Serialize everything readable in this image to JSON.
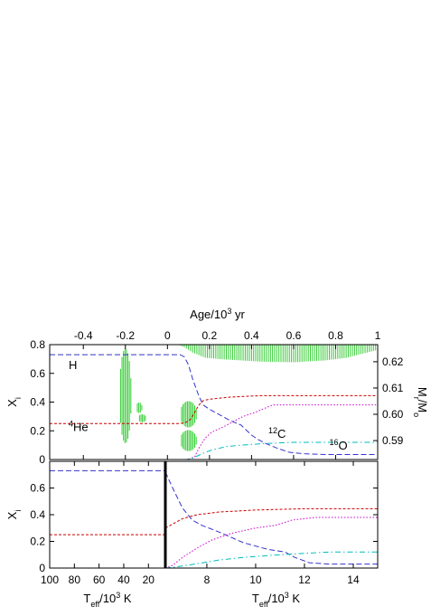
{
  "chart_data": [
    {
      "panel": "top",
      "type": "line",
      "x_top_axis": {
        "label": "Age/10",
        "label_sup": "3",
        "label_tail": " yr",
        "lim": [
          -0.56,
          1.0
        ],
        "ticks": [
          "-0.4",
          "-0.2",
          "0",
          "0.2",
          "0.4",
          "0.6",
          "0.8",
          "1"
        ],
        "tick_values": [
          -0.4,
          -0.2,
          0,
          0.2,
          0.4,
          0.6,
          0.8,
          1.0
        ]
      },
      "y_left_axis": {
        "label": "X",
        "label_sub": "i",
        "lim": [
          0,
          0.8
        ],
        "ticks": [
          "0",
          "0.2",
          "0.4",
          "0.6",
          "0.8"
        ],
        "tick_values": [
          0,
          0.2,
          0.4,
          0.6,
          0.8
        ]
      },
      "y_right_axis": {
        "label": "M",
        "label_sub": "r",
        "label_mid": "/M",
        "label_sub2": "o",
        "lim": [
          0.5828,
          0.6265
        ],
        "ticks": [
          "0.59",
          "0.60",
          "0.61",
          "0.62"
        ],
        "tick_values": [
          0.59,
          0.6,
          0.61,
          0.62
        ]
      },
      "annotations": [
        {
          "text": "H",
          "x": -0.47,
          "y": 0.63
        },
        {
          "sup": "4",
          "text": "He",
          "x": -0.47,
          "y": 0.2
        },
        {
          "sup": "12",
          "text": "C",
          "x": 0.48,
          "y": 0.15
        },
        {
          "sup": "16",
          "text": "O",
          "x": 0.77,
          "y": 0.07
        }
      ],
      "series": [
        {
          "color": "#3333cc",
          "dash": "6,3",
          "points": [
            [
              -0.56,
              0.73
            ],
            [
              0.06,
              0.73
            ],
            [
              0.08,
              0.715
            ],
            [
              0.1,
              0.66
            ],
            [
              0.12,
              0.56
            ],
            [
              0.13,
              0.52
            ],
            [
              0.15,
              0.44
            ],
            [
              0.17,
              0.38
            ],
            [
              0.2,
              0.35
            ],
            [
              0.25,
              0.31
            ],
            [
              0.3,
              0.27
            ],
            [
              0.35,
              0.24
            ],
            [
              0.4,
              0.17
            ],
            [
              0.43,
              0.14
            ],
            [
              0.47,
              0.11
            ],
            [
              0.52,
              0.08
            ],
            [
              0.58,
              0.05
            ],
            [
              0.65,
              0.04
            ],
            [
              0.75,
              0.035
            ],
            [
              1.0,
              0.035
            ]
          ]
        },
        {
          "color": "#cc0000",
          "dash": "3,2",
          "points": [
            [
              -0.56,
              0.25
            ],
            [
              0.06,
              0.25
            ],
            [
              0.09,
              0.26
            ],
            [
              0.11,
              0.28
            ],
            [
              0.13,
              0.33
            ],
            [
              0.15,
              0.38
            ],
            [
              0.17,
              0.41
            ],
            [
              0.2,
              0.42
            ],
            [
              0.3,
              0.435
            ],
            [
              0.45,
              0.445
            ],
            [
              0.6,
              0.445
            ],
            [
              1.0,
              0.445
            ]
          ]
        },
        {
          "color": "#cc00cc",
          "dash": "1.5,2",
          "points": [
            [
              -0.56,
              0.0
            ],
            [
              0.1,
              0.0
            ],
            [
              0.13,
              0.02
            ],
            [
              0.15,
              0.08
            ],
            [
              0.18,
              0.15
            ],
            [
              0.21,
              0.19
            ],
            [
              0.27,
              0.23
            ],
            [
              0.32,
              0.27
            ],
            [
              0.36,
              0.3
            ],
            [
              0.42,
              0.33
            ],
            [
              0.5,
              0.38
            ],
            [
              0.6,
              0.38
            ],
            [
              1.0,
              0.38
            ]
          ]
        },
        {
          "color": "#00bbbb",
          "dash": "6,3,1.5,3",
          "points": [
            [
              -0.56,
              0.0
            ],
            [
              0.09,
              0.0
            ],
            [
              0.12,
              0.01
            ],
            [
              0.15,
              0.03
            ],
            [
              0.18,
              0.05
            ],
            [
              0.22,
              0.07
            ],
            [
              0.28,
              0.09
            ],
            [
              0.35,
              0.1
            ],
            [
              0.45,
              0.11
            ],
            [
              0.6,
              0.12
            ],
            [
              1.0,
              0.12
            ]
          ]
        }
      ],
      "convection_zones_color": "#33cc33",
      "convection_zones_mass": [
        {
          "x": [
            -0.23,
            -0.17
          ],
          "center": [
            -0.2,
            0.607
          ],
          "half_width": 0.028,
          "half_height": 0.018
        },
        {
          "x": [
            -0.15,
            -0.12
          ],
          "center": [
            -0.135,
            0.6025
          ],
          "half_width": 0.015,
          "half_height": 0.002
        },
        {
          "x": [
            -0.14,
            -0.1
          ],
          "center": [
            -0.12,
            0.5985
          ],
          "half_width": 0.02,
          "half_height": 0.0015
        },
        {
          "x": [
            0.06,
            0.14
          ],
          "center": [
            0.1,
            0.6
          ],
          "half_width": 0.04,
          "half_height": 0.005
        },
        {
          "x": [
            0.06,
            0.14
          ],
          "center": [
            0.1,
            0.59
          ],
          "half_width": 0.04,
          "half_height": 0.004
        }
      ],
      "outer_zone": {
        "x": [
          0.05,
          1.0
        ],
        "top": 0.6265,
        "bottom_points": [
          [
            0.05,
            0.6265
          ],
          [
            0.08,
            0.6255
          ],
          [
            0.12,
            0.6235
          ],
          [
            0.18,
            0.6215
          ],
          [
            0.25,
            0.621
          ],
          [
            0.35,
            0.6205
          ],
          [
            0.45,
            0.62
          ],
          [
            0.6,
            0.6198
          ],
          [
            0.75,
            0.6205
          ],
          [
            0.85,
            0.6215
          ],
          [
            0.95,
            0.6235
          ],
          [
            1.0,
            0.6245
          ]
        ]
      }
    },
    {
      "panel": "bottom",
      "type": "line",
      "y_left_axis": {
        "label": "X",
        "label_sub": "i",
        "lim": [
          0,
          0.8
        ],
        "ticks": [
          "0",
          "0.2",
          "0.4",
          "0.6"
        ],
        "tick_values": [
          0,
          0.2,
          0.4,
          0.6
        ]
      },
      "x_left_axis": {
        "label": "T",
        "label_sub": "eff",
        "label_mid": "/10",
        "label_sup": "3",
        "label_tail": " K",
        "lim": [
          100,
          6.3
        ],
        "ticks": [
          "100",
          "80",
          "60",
          "40",
          "20"
        ],
        "tick_values": [
          100,
          80,
          60,
          40,
          20
        ]
      },
      "x_right_axis": {
        "label": "T",
        "label_sub": "eff",
        "label_mid": "/10",
        "label_sup": "3",
        "label_tail": " K",
        "lim": [
          6.3,
          15
        ],
        "ticks": [
          "8",
          "10",
          "12",
          "14"
        ],
        "tick_values": [
          8,
          10,
          12,
          14
        ]
      },
      "series_left": [
        {
          "color": "#3333cc",
          "dash": "6,3",
          "value": 0.73
        },
        {
          "color": "#cc0000",
          "dash": "3,2",
          "value": 0.25
        },
        {
          "color": "#cc00cc",
          "dash": "1.5,2",
          "value": 0.0
        },
        {
          "color": "#00bbbb",
          "dash": "6,3,1.5,3",
          "value": 0.0
        }
      ],
      "series_right": [
        {
          "color": "#3333cc",
          "dash": "6,3",
          "points": [
            [
              6.3,
              0.72
            ],
            [
              6.6,
              0.6
            ],
            [
              7.0,
              0.45
            ],
            [
              7.4,
              0.36
            ],
            [
              7.8,
              0.32
            ],
            [
              8.5,
              0.27
            ],
            [
              9.5,
              0.19
            ],
            [
              10.5,
              0.14
            ],
            [
              11.2,
              0.12
            ],
            [
              11.6,
              0.08
            ],
            [
              12.2,
              0.04
            ],
            [
              13,
              0.03
            ],
            [
              15,
              0.03
            ]
          ]
        },
        {
          "color": "#cc0000",
          "dash": "3,2",
          "points": [
            [
              6.3,
              0.3
            ],
            [
              6.6,
              0.33
            ],
            [
              7.0,
              0.37
            ],
            [
              7.6,
              0.4
            ],
            [
              8.5,
              0.42
            ],
            [
              10,
              0.435
            ],
            [
              12,
              0.445
            ],
            [
              15,
              0.445
            ]
          ]
        },
        {
          "color": "#cc00cc",
          "dash": "1.5,2",
          "points": [
            [
              6.3,
              0.0
            ],
            [
              6.6,
              0.02
            ],
            [
              7.0,
              0.08
            ],
            [
              7.6,
              0.15
            ],
            [
              8.2,
              0.21
            ],
            [
              9,
              0.26
            ],
            [
              10,
              0.3
            ],
            [
              10.8,
              0.32
            ],
            [
              11.5,
              0.36
            ],
            [
              12.5,
              0.38
            ],
            [
              15,
              0.38
            ]
          ]
        },
        {
          "color": "#00bbbb",
          "dash": "6,3,1.5,3",
          "points": [
            [
              6.3,
              0.0
            ],
            [
              6.8,
              0.01
            ],
            [
              7.5,
              0.03
            ],
            [
              8.5,
              0.06
            ],
            [
              9.5,
              0.08
            ],
            [
              11,
              0.1
            ],
            [
              13,
              0.12
            ],
            [
              15,
              0.12
            ]
          ]
        }
      ]
    }
  ]
}
